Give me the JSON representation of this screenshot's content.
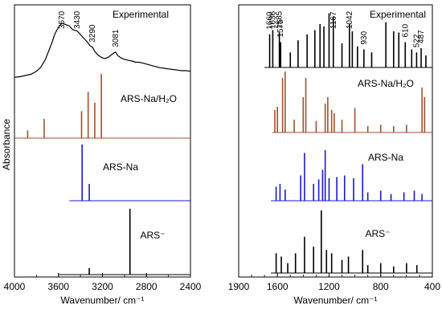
{
  "figure": {
    "y_axis_label": "Absorbance",
    "x_axis_label": "Wavenumber/  cm⁻¹"
  },
  "chart_data": [
    {
      "type": "line",
      "panel": "left",
      "xlabel": "Wavenumber/  cm⁻¹",
      "ylabel": "Absorbance",
      "xlim": [
        4000,
        2400
      ],
      "x_ticks": [
        4000,
        3600,
        3200,
        2800,
        2400
      ],
      "x_reversed": true,
      "grid": false,
      "series": [
        {
          "name": "Experimental",
          "color": "#000000",
          "kind": "experimental",
          "baseline_range": [
            4000,
            2400
          ],
          "points": [
            [
              4000,
              0.05
            ],
            [
              3950,
              0.06
            ],
            [
              3900,
              0.08
            ],
            [
              3850,
              0.1
            ],
            [
              3800,
              0.15
            ],
            [
              3760,
              0.22
            ],
            [
              3720,
              0.34
            ],
            [
              3690,
              0.48
            ],
            [
              3660,
              0.62
            ],
            [
              3630,
              0.78
            ],
            [
              3600,
              0.88
            ],
            [
              3570,
              0.95
            ],
            [
              3540,
              0.93
            ],
            [
              3500,
              0.9
            ],
            [
              3470,
              0.84
            ],
            [
              3430,
              0.82
            ],
            [
              3400,
              0.76
            ],
            [
              3370,
              0.7
            ],
            [
              3340,
              0.64
            ],
            [
              3310,
              0.57
            ],
            [
              3290,
              0.55
            ],
            [
              3270,
              0.48
            ],
            [
              3240,
              0.42
            ],
            [
              3210,
              0.38
            ],
            [
              3180,
              0.36
            ],
            [
              3150,
              0.38
            ],
            [
              3120,
              0.42
            ],
            [
              3100,
              0.45
            ],
            [
              3081,
              0.47
            ],
            [
              3060,
              0.41
            ],
            [
              3030,
              0.37
            ],
            [
              3000,
              0.35
            ],
            [
              2960,
              0.33
            ],
            [
              2930,
              0.32
            ],
            [
              2900,
              0.3
            ],
            [
              2870,
              0.3
            ],
            [
              2840,
              0.29
            ],
            [
              2800,
              0.27
            ],
            [
              2760,
              0.25
            ],
            [
              2720,
              0.23
            ],
            [
              2680,
              0.21
            ],
            [
              2640,
              0.2
            ],
            [
              2600,
              0.19
            ],
            [
              2560,
              0.18
            ],
            [
              2520,
              0.17
            ],
            [
              2480,
              0.16
            ],
            [
              2440,
              0.16
            ],
            [
              2400,
              0.15
            ]
          ],
          "annotations": [
            "3570",
            "3430",
            "3290",
            "3081"
          ]
        },
        {
          "name": "ARS-Na/H₂O",
          "color": "#a0522d",
          "kind": "sticks",
          "baseline_range": [
            4000,
            2400
          ],
          "sticks": [
            [
              3880,
              0.12
            ],
            [
              3730,
              0.3
            ],
            [
              3390,
              0.42
            ],
            [
              3330,
              0.72
            ],
            [
              3270,
              0.55
            ],
            [
              3210,
              1.0
            ]
          ]
        },
        {
          "name": "ARS-Na",
          "color": "#1a1acc",
          "kind": "sticks",
          "baseline_range": [
            3500,
            2400
          ],
          "sticks": [
            [
              3385,
              1.0
            ],
            [
              3320,
              0.3
            ]
          ]
        },
        {
          "name": "ARS⁻",
          "color": "#000000",
          "kind": "sticks",
          "baseline_range": [
            3600,
            2400
          ],
          "sticks": [
            [
              3320,
              0.1
            ],
            [
              2950,
              1.0
            ]
          ]
        }
      ]
    },
    {
      "type": "line",
      "panel": "right",
      "xlabel": "Wavenumber/  cm⁻¹",
      "ylabel": "",
      "xlim": [
        1900,
        400
      ],
      "x_ticks": [
        1900,
        1600,
        1200,
        800,
        400
      ],
      "x_reversed": true,
      "grid": false,
      "series": [
        {
          "name": "Experimental",
          "color": "#000000",
          "kind": "sticks",
          "baseline_range": [
            1700,
            400
          ],
          "sticks": [
            [
              1660,
              0.55
            ],
            [
              1636,
              0.62
            ],
            [
              1585,
              0.58
            ],
            [
              1575,
              0.42
            ],
            [
              1500,
              0.25
            ],
            [
              1440,
              0.45
            ],
            [
              1370,
              0.55
            ],
            [
              1310,
              0.62
            ],
            [
              1270,
              0.72
            ],
            [
              1240,
              0.68
            ],
            [
              1200,
              0.9
            ],
            [
              1167,
              0.85
            ],
            [
              1100,
              0.4
            ],
            [
              1042,
              0.72
            ],
            [
              1020,
              0.6
            ],
            [
              980,
              0.35
            ],
            [
              930,
              0.3
            ],
            [
              870,
              0.25
            ],
            [
              760,
              0.75
            ],
            [
              700,
              0.6
            ],
            [
              660,
              0.58
            ],
            [
              610,
              0.42
            ],
            [
              560,
              0.3
            ],
            [
              522,
              0.25
            ],
            [
              487,
              0.32
            ],
            [
              450,
              0.2
            ]
          ],
          "annotations": [
            "1660",
            "1636",
            "1585",
            "1575",
            "1167",
            "1042",
            "930",
            "610",
            "522",
            "487"
          ]
        },
        {
          "name": "ARS-Na/H₂O",
          "color": "#a0522d",
          "kind": "sticks",
          "baseline_range": [
            1640,
            400
          ],
          "sticks": [
            [
              1620,
              0.35
            ],
            [
              1600,
              0.4
            ],
            [
              1560,
              0.85
            ],
            [
              1540,
              0.95
            ],
            [
              1470,
              0.2
            ],
            [
              1400,
              0.55
            ],
            [
              1380,
              0.85
            ],
            [
              1300,
              0.18
            ],
            [
              1230,
              0.45
            ],
            [
              1210,
              0.55
            ],
            [
              1180,
              0.35
            ],
            [
              1160,
              0.3
            ],
            [
              1100,
              0.2
            ],
            [
              1000,
              0.38
            ],
            [
              900,
              0.1
            ],
            [
              800,
              0.12
            ],
            [
              700,
              0.1
            ],
            [
              600,
              0.12
            ],
            [
              480,
              0.7
            ],
            [
              460,
              0.55
            ]
          ]
        },
        {
          "name": "ARS-Na",
          "color": "#1a1acc",
          "kind": "sticks",
          "baseline_range": [
            1650,
            400
          ],
          "sticks": [
            [
              1610,
              0.25
            ],
            [
              1580,
              0.3
            ],
            [
              1540,
              0.2
            ],
            [
              1420,
              0.45
            ],
            [
              1390,
              0.85
            ],
            [
              1320,
              0.3
            ],
            [
              1280,
              0.38
            ],
            [
              1250,
              0.55
            ],
            [
              1230,
              0.9
            ],
            [
              1200,
              0.4
            ],
            [
              1140,
              0.42
            ],
            [
              1080,
              0.45
            ],
            [
              1010,
              0.4
            ],
            [
              940,
              0.65
            ],
            [
              900,
              0.15
            ],
            [
              800,
              0.18
            ],
            [
              720,
              0.12
            ],
            [
              620,
              0.15
            ],
            [
              540,
              0.18
            ],
            [
              480,
              0.12
            ]
          ]
        },
        {
          "name": "ARS⁻",
          "color": "#000000",
          "kind": "sticks",
          "baseline_range": [
            1650,
            400
          ],
          "sticks": [
            [
              1610,
              0.3
            ],
            [
              1570,
              0.25
            ],
            [
              1520,
              0.15
            ],
            [
              1460,
              0.3
            ],
            [
              1390,
              0.55
            ],
            [
              1320,
              0.4
            ],
            [
              1260,
              0.95
            ],
            [
              1220,
              0.35
            ],
            [
              1180,
              0.3
            ],
            [
              1100,
              0.2
            ],
            [
              1050,
              0.25
            ],
            [
              940,
              0.35
            ],
            [
              900,
              0.12
            ],
            [
              800,
              0.15
            ],
            [
              700,
              0.1
            ],
            [
              600,
              0.15
            ],
            [
              520,
              0.12
            ]
          ]
        }
      ]
    }
  ]
}
